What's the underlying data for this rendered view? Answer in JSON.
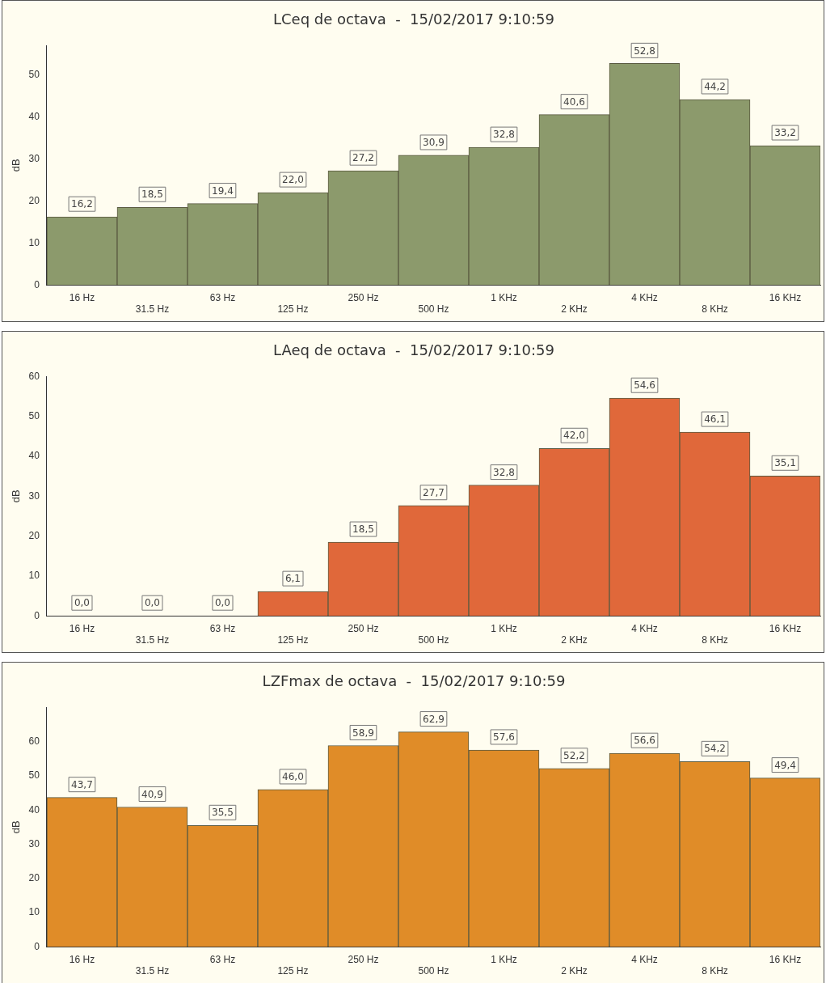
{
  "chart_data": [
    {
      "type": "bar",
      "title": "LCeq de octava  -  15/02/2017 9:10:59",
      "ylabel": "dB",
      "categories": [
        "16 Hz",
        "31.5 Hz",
        "63 Hz",
        "125 Hz",
        "250 Hz",
        "500 Hz",
        "1 KHz",
        "2 KHz",
        "4 KHz",
        "8 KHz",
        "16 KHz"
      ],
      "values": [
        16.2,
        18.5,
        19.4,
        22.0,
        27.2,
        30.9,
        32.8,
        40.6,
        52.8,
        44.2,
        33.2
      ],
      "value_labels": [
        "16,2",
        "18,5",
        "19,4",
        "22,0",
        "27,2",
        "30,9",
        "32,8",
        "40,6",
        "52,8",
        "44,2",
        "33,2"
      ],
      "color": "#8c9a6c",
      "ylim": [
        0,
        57
      ],
      "yticks": [
        0,
        10,
        20,
        30,
        40,
        50
      ]
    },
    {
      "type": "bar",
      "title": "LAeq de octava  -  15/02/2017 9:10:59",
      "ylabel": "dB",
      "categories": [
        "16 Hz",
        "31.5 Hz",
        "63 Hz",
        "125 Hz",
        "250 Hz",
        "500 Hz",
        "1 KHz",
        "2 KHz",
        "4 KHz",
        "8 KHz",
        "16 KHz"
      ],
      "values": [
        0.0,
        0.0,
        0.0,
        6.1,
        18.5,
        27.7,
        32.8,
        42.0,
        54.6,
        46.1,
        35.1
      ],
      "value_labels": [
        "0,0",
        "0,0",
        "0,0",
        "6,1",
        "18,5",
        "27,7",
        "32,8",
        "42,0",
        "54,6",
        "46,1",
        "35,1"
      ],
      "color": "#e0683a",
      "ylim": [
        0,
        60
      ],
      "yticks": [
        0,
        10,
        20,
        30,
        40,
        50,
        60
      ]
    },
    {
      "type": "bar",
      "title": "LZFmax de octava  -  15/02/2017 9:10:59",
      "ylabel": "dB",
      "categories": [
        "16 Hz",
        "31.5 Hz",
        "63 Hz",
        "125 Hz",
        "250 Hz",
        "500 Hz",
        "1 KHz",
        "2 KHz",
        "4 KHz",
        "8 KHz",
        "16 KHz"
      ],
      "values": [
        43.7,
        40.9,
        35.5,
        46.0,
        58.9,
        62.9,
        57.6,
        52.2,
        56.6,
        54.2,
        49.4
      ],
      "value_labels": [
        "43,7",
        "40,9",
        "35,5",
        "46,0",
        "58,9",
        "62,9",
        "57,6",
        "52,2",
        "56,6",
        "54,2",
        "49,4"
      ],
      "color": "#e08c28",
      "ylim": [
        0,
        70
      ],
      "yticks": [
        0,
        10,
        20,
        30,
        40,
        50,
        60
      ]
    }
  ]
}
